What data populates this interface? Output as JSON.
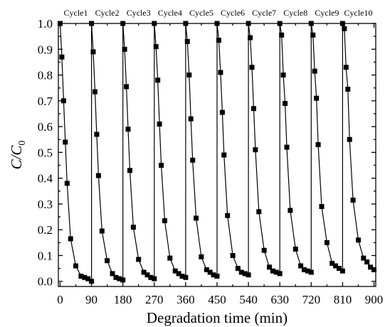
{
  "chart_data": {
    "type": "line",
    "title": "",
    "xlabel": "Degradation time (min)",
    "ylabel": {
      "main": "C/C",
      "sub": "0"
    },
    "xlim": [
      -5,
      905
    ],
    "ylim": [
      -0.02,
      1.0
    ],
    "xticks": [
      "0",
      "90",
      "180",
      "270",
      "360",
      "450",
      "540",
      "630",
      "720",
      "810",
      "900"
    ],
    "yticks": [
      "0.0",
      "0.1",
      "0.2",
      "0.3",
      "0.4",
      "0.5",
      "0.6",
      "0.7",
      "0.8",
      "0.9",
      "1.0"
    ],
    "grid": false,
    "legend": "none",
    "series_color": "#000000",
    "marker": "square",
    "cycle_labels": [
      "Cycle1",
      "Cycle2",
      "Cycle3",
      "Cycle4",
      "Cycle5",
      "Cycle6",
      "Cycle7",
      "Cycle8",
      "Cycle9",
      "Cycle10"
    ],
    "cycles": [
      {
        "label": "Cycle1",
        "x": [
          0,
          5,
          10,
          15,
          20,
          30,
          45,
          60,
          70,
          80,
          90
        ],
        "y": [
          1.0,
          0.87,
          0.7,
          0.54,
          0.38,
          0.165,
          0.06,
          0.02,
          0.015,
          0.01,
          0.0
        ]
      },
      {
        "label": "Cycle2",
        "x": [
          90,
          95,
          100,
          105,
          110,
          120,
          135,
          150,
          160,
          170,
          180
        ],
        "y": [
          1.0,
          0.89,
          0.735,
          0.57,
          0.41,
          0.195,
          0.08,
          0.03,
          0.015,
          0.01,
          0.005
        ]
      },
      {
        "label": "Cycle3",
        "x": [
          180,
          185,
          190,
          195,
          200,
          210,
          225,
          240,
          250,
          260,
          270
        ],
        "y": [
          1.0,
          0.9,
          0.755,
          0.59,
          0.43,
          0.21,
          0.085,
          0.035,
          0.025,
          0.015,
          0.01
        ]
      },
      {
        "label": "Cycle4",
        "x": [
          270,
          275,
          280,
          285,
          290,
          300,
          315,
          330,
          340,
          350,
          360
        ],
        "y": [
          1.0,
          0.91,
          0.78,
          0.61,
          0.45,
          0.235,
          0.09,
          0.04,
          0.03,
          0.02,
          0.015
        ]
      },
      {
        "label": "Cycle5",
        "x": [
          360,
          365,
          370,
          375,
          380,
          390,
          405,
          420,
          430,
          440,
          450
        ],
        "y": [
          1.0,
          0.93,
          0.8,
          0.63,
          0.47,
          0.245,
          0.095,
          0.045,
          0.035,
          0.025,
          0.02
        ]
      },
      {
        "label": "Cycle6",
        "x": [
          450,
          455,
          460,
          465,
          470,
          480,
          495,
          510,
          520,
          530,
          540
        ],
        "y": [
          1.0,
          0.935,
          0.81,
          0.655,
          0.49,
          0.255,
          0.1,
          0.05,
          0.035,
          0.03,
          0.025
        ]
      },
      {
        "label": "Cycle7",
        "x": [
          540,
          545,
          550,
          555,
          560,
          570,
          585,
          600,
          610,
          620,
          630
        ],
        "y": [
          1.0,
          0.945,
          0.83,
          0.67,
          0.51,
          0.27,
          0.12,
          0.055,
          0.04,
          0.035,
          0.03
        ]
      },
      {
        "label": "Cycle8",
        "x": [
          630,
          635,
          640,
          645,
          650,
          660,
          675,
          690,
          700,
          710,
          720
        ],
        "y": [
          1.0,
          0.955,
          0.8,
          0.69,
          0.52,
          0.275,
          0.125,
          0.06,
          0.045,
          0.04,
          0.035
        ]
      },
      {
        "label": "Cycle9",
        "x": [
          720,
          725,
          730,
          735,
          740,
          750,
          765,
          780,
          790,
          800,
          810
        ],
        "y": [
          1.0,
          0.955,
          0.815,
          0.71,
          0.53,
          0.29,
          0.15,
          0.07,
          0.06,
          0.05,
          0.04
        ]
      },
      {
        "label": "Cycle10",
        "x": [
          810,
          815,
          820,
          825,
          830,
          840,
          855,
          870,
          880,
          890,
          900
        ],
        "y": [
          1.0,
          0.98,
          0.83,
          0.745,
          0.55,
          0.315,
          0.16,
          0.09,
          0.075,
          0.055,
          0.045
        ]
      }
    ]
  }
}
